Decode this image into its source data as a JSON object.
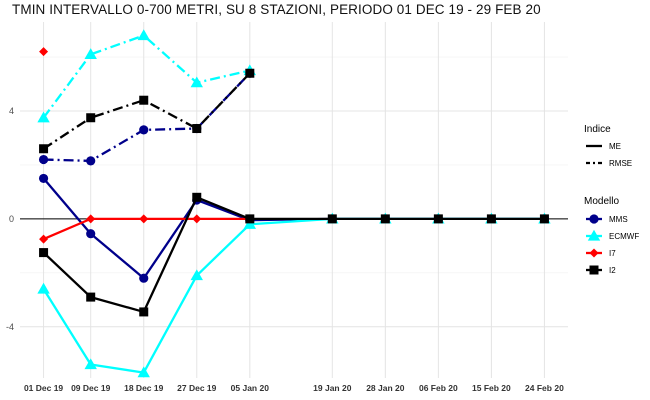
{
  "chart_data": {
    "type": "line",
    "title": "TMIN INTERVALLO 0-700 METRI, SU 8 STAZIONI, PERIODO 01 DEC 19  -  29 FEB 20",
    "xlabel": "",
    "ylabel": "",
    "x_ticks": [
      "01 Dec 19",
      "09 Dec 19",
      "18 Dec 19",
      "27 Dec 19",
      "05 Jan 20",
      "19 Jan 20",
      "28 Jan 20",
      "06 Feb 20",
      "15 Feb 20",
      "24 Feb 20"
    ],
    "x_dates": [
      "2019-12-01",
      "2019-12-09",
      "2019-12-18",
      "2019-12-27",
      "2020-01-05",
      "2020-01-19",
      "2020-01-28",
      "2020-02-06",
      "2020-02-15",
      "2020-02-24"
    ],
    "y_ticks": [
      -4,
      0,
      4
    ],
    "y_range": [
      -5.9,
      7.3
    ],
    "x_range": [
      "2019-11-27",
      "2020-02-28"
    ],
    "grid": true,
    "zero_line": true,
    "legend_placement": "right",
    "legend": {
      "indice_title": "Indice",
      "indice_items": [
        {
          "label": "ME",
          "dash": "solid"
        },
        {
          "label": "RMSE",
          "dash": "dotdash"
        }
      ],
      "modello_title": "Modello",
      "modello_items": [
        {
          "label": "MMS",
          "color": "#00008B",
          "shape": "circle"
        },
        {
          "label": "ECMWF",
          "color": "#00FFFF",
          "shape": "triangle"
        },
        {
          "label": "I7",
          "color": "#FF0000",
          "shape": "diamond"
        },
        {
          "label": "I2",
          "color": "#000000",
          "shape": "square"
        }
      ]
    },
    "series": [
      {
        "model": "MMS",
        "indice": "ME",
        "color": "#00008B",
        "shape": "circle",
        "points": [
          [
            "2019-12-01",
            1.5
          ],
          [
            "2019-12-09",
            -0.55
          ],
          [
            "2019-12-18",
            -2.2
          ],
          [
            "2019-12-27",
            0.7
          ],
          [
            "2020-01-05",
            -0.05
          ],
          [
            "2020-01-19",
            0
          ],
          [
            "2020-01-28",
            0
          ],
          [
            "2020-02-06",
            0
          ],
          [
            "2020-02-15",
            0
          ],
          [
            "2020-02-24",
            0
          ]
        ]
      },
      {
        "model": "ECMWF",
        "indice": "ME",
        "color": "#00FFFF",
        "shape": "triangle",
        "points": [
          [
            "2019-12-01",
            -2.6
          ],
          [
            "2019-12-09",
            -5.4
          ],
          [
            "2019-12-18",
            -5.7
          ],
          [
            "2019-12-27",
            -2.1
          ],
          [
            "2020-01-05",
            -0.2
          ],
          [
            "2020-01-19",
            0
          ],
          [
            "2020-01-28",
            0
          ],
          [
            "2020-02-06",
            0
          ],
          [
            "2020-02-15",
            0
          ],
          [
            "2020-02-24",
            0
          ]
        ]
      },
      {
        "model": "I7",
        "indice": "ME",
        "color": "#FF0000",
        "shape": "diamond",
        "points": [
          [
            "2019-12-01",
            -0.75
          ],
          [
            "2019-12-09",
            0
          ],
          [
            "2019-12-18",
            0
          ],
          [
            "2019-12-27",
            0
          ],
          [
            "2020-01-05",
            0
          ]
        ]
      },
      {
        "model": "I2",
        "indice": "ME",
        "color": "#000000",
        "shape": "square",
        "points": [
          [
            "2019-12-01",
            -1.25
          ],
          [
            "2019-12-09",
            -2.9
          ],
          [
            "2019-12-18",
            -3.45
          ],
          [
            "2019-12-27",
            0.8
          ],
          [
            "2020-01-05",
            0
          ],
          [
            "2020-01-19",
            0
          ],
          [
            "2020-01-28",
            0
          ],
          [
            "2020-02-06",
            0
          ],
          [
            "2020-02-15",
            0
          ],
          [
            "2020-02-24",
            0
          ]
        ]
      },
      {
        "model": "MMS",
        "indice": "RMSE",
        "color": "#00008B",
        "shape": "circle",
        "points": [
          [
            "2019-12-01",
            2.2
          ],
          [
            "2019-12-09",
            2.15
          ],
          [
            "2019-12-18",
            3.3
          ],
          [
            "2019-12-27",
            3.35
          ],
          [
            "2020-01-05",
            5.4
          ]
        ]
      },
      {
        "model": "ECMWF",
        "indice": "RMSE",
        "color": "#00FFFF",
        "shape": "triangle",
        "points": [
          [
            "2019-12-01",
            3.75
          ],
          [
            "2019-12-09",
            6.1
          ],
          [
            "2019-12-18",
            6.8
          ],
          [
            "2019-12-27",
            5.05
          ],
          [
            "2020-01-05",
            5.5
          ]
        ]
      },
      {
        "model": "I7",
        "indice": "RMSE",
        "color": "#FF0000",
        "shape": "diamond",
        "points": [
          [
            "2019-12-01",
            6.2
          ]
        ]
      },
      {
        "model": "I2",
        "indice": "RMSE",
        "color": "#000000",
        "shape": "square",
        "points": [
          [
            "2019-12-01",
            2.6
          ],
          [
            "2019-12-09",
            3.75
          ],
          [
            "2019-12-18",
            4.4
          ],
          [
            "2019-12-27",
            3.35
          ],
          [
            "2020-01-05",
            5.4
          ]
        ]
      }
    ]
  }
}
